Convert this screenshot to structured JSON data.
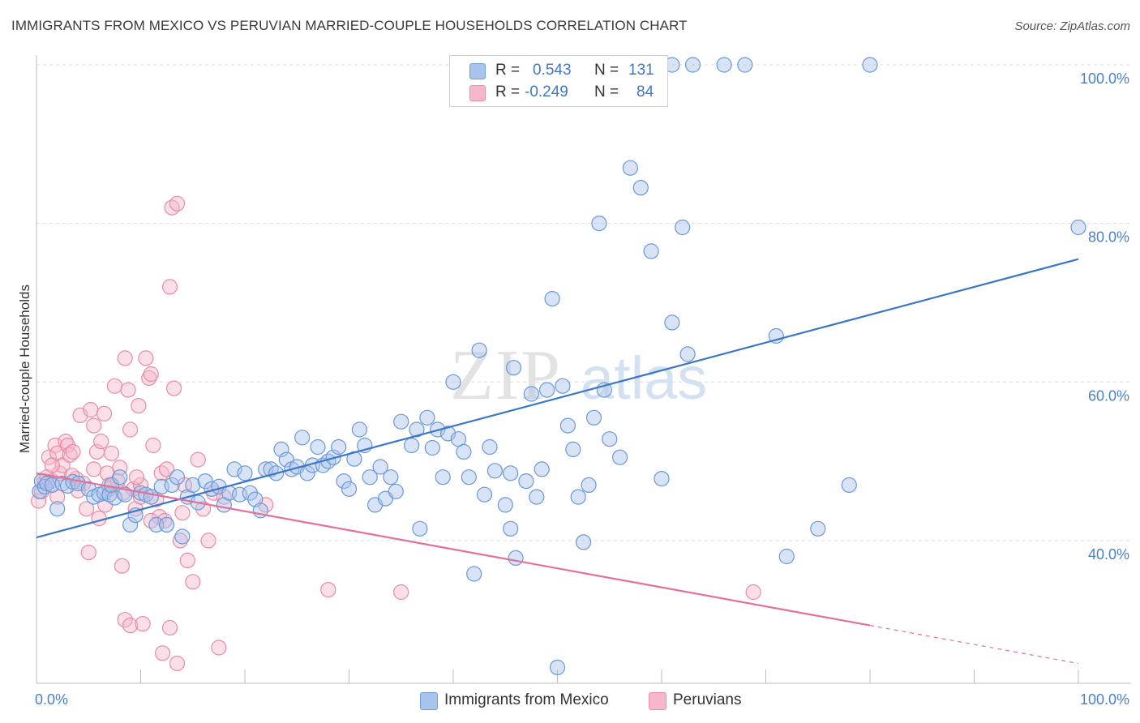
{
  "title": "IMMIGRANTS FROM MEXICO VS PERUVIAN MARRIED-COUPLE HOUSEHOLDS CORRELATION CHART",
  "source": "Source: ZipAtlas.com",
  "watermark": {
    "zip": "ZIP",
    "atlas": "atlas"
  },
  "legend": {
    "rows": [
      {
        "r_label": "R =",
        "r_value": "0.543",
        "n_label": "N =",
        "n_value": "131",
        "color": "#a9c4ec",
        "stroke": "#6f9fdc"
      },
      {
        "r_label": "R =",
        "r_value": "-0.249",
        "n_label": "N =",
        "n_value": "84",
        "color": "#f5b7c9",
        "stroke": "#ec8fab"
      }
    ]
  },
  "bottom_legend": [
    {
      "label": "Immigrants from Mexico",
      "color": "#a9c4ec",
      "stroke": "#6f9fdc"
    },
    {
      "label": "Peruvians",
      "color": "#f5b7c9",
      "stroke": "#ec8fab"
    }
  ],
  "chart_data": {
    "type": "scatter",
    "ylabel": "Married-couple Households",
    "xlim": [
      0,
      100
    ],
    "ylim": [
      22,
      100
    ],
    "x_tick_labels": [
      "0.0%",
      "100.0%"
    ],
    "y_ticks": [
      {
        "value": 40,
        "label": "40.0%"
      },
      {
        "value": 60,
        "label": "60.0%"
      },
      {
        "value": 80,
        "label": "80.0%"
      },
      {
        "value": 100,
        "label": "100.0%"
      }
    ],
    "grid": true,
    "colors": {
      "blue": "#3b76c9",
      "pink": "#e4709a",
      "tick_text": "#4a7fcd"
    },
    "series": [
      {
        "name": "Immigrants from Mexico",
        "color": "#3b76c9",
        "trend": {
          "x": [
            0,
            100
          ],
          "y": [
            40.4,
            75.5
          ]
        },
        "points": [
          [
            0.3,
            46.2
          ],
          [
            0.5,
            47.5
          ],
          [
            0.8,
            46.8
          ],
          [
            1,
            47.2
          ],
          [
            1.5,
            47
          ],
          [
            2,
            44
          ],
          [
            2.5,
            47.2
          ],
          [
            3,
            46.9
          ],
          [
            3.5,
            47.4
          ],
          [
            4,
            47.2
          ],
          [
            5,
            46.5
          ],
          [
            5.5,
            45.5
          ],
          [
            6,
            45.8
          ],
          [
            6.5,
            46
          ],
          [
            7,
            45.8
          ],
          [
            7.5,
            45.4
          ],
          [
            7.2,
            47
          ],
          [
            8,
            48
          ],
          [
            8.5,
            45.8
          ],
          [
            9,
            42
          ],
          [
            9.5,
            43.2
          ],
          [
            10,
            46
          ],
          [
            10.5,
            45.8
          ],
          [
            11,
            45.5
          ],
          [
            11.5,
            42
          ],
          [
            12,
            46.8
          ],
          [
            12.5,
            42
          ],
          [
            13,
            47
          ],
          [
            13.5,
            48
          ],
          [
            14,
            40.5
          ],
          [
            14.5,
            45.5
          ],
          [
            15,
            47
          ],
          [
            15.5,
            44.8
          ],
          [
            16.2,
            47.5
          ],
          [
            16.8,
            46.5
          ],
          [
            17.5,
            46.8
          ],
          [
            18,
            44.5
          ],
          [
            18.5,
            46
          ],
          [
            19,
            49
          ],
          [
            19.5,
            45.8
          ],
          [
            20,
            48.5
          ],
          [
            20.5,
            46
          ],
          [
            21,
            45.2
          ],
          [
            21.5,
            43.8
          ],
          [
            22,
            49
          ],
          [
            22.5,
            49
          ],
          [
            23,
            48.5
          ],
          [
            23.5,
            51.5
          ],
          [
            24,
            50.2
          ],
          [
            24.5,
            49
          ],
          [
            25,
            49.3
          ],
          [
            25.5,
            53
          ],
          [
            26,
            48.5
          ],
          [
            26.5,
            49.5
          ],
          [
            27,
            51.8
          ],
          [
            27.5,
            49.5
          ],
          [
            28,
            50
          ],
          [
            28.5,
            50.5
          ],
          [
            29,
            51.8
          ],
          [
            29.5,
            47.5
          ],
          [
            30,
            46.5
          ],
          [
            30.5,
            50.3
          ],
          [
            31,
            54
          ],
          [
            31.5,
            52
          ],
          [
            32,
            48
          ],
          [
            32.5,
            44.5
          ],
          [
            33,
            49.3
          ],
          [
            33.5,
            45.3
          ],
          [
            34,
            48
          ],
          [
            34.5,
            46.2
          ],
          [
            35,
            55
          ],
          [
            36,
            52
          ],
          [
            36.5,
            54
          ],
          [
            36.8,
            41.5
          ],
          [
            37.5,
            55.5
          ],
          [
            38,
            51.7
          ],
          [
            38.5,
            54
          ],
          [
            39,
            48
          ],
          [
            39.5,
            53.5
          ],
          [
            40,
            60
          ],
          [
            40.5,
            52.8
          ],
          [
            41,
            51.2
          ],
          [
            41.5,
            48
          ],
          [
            42,
            35.8
          ],
          [
            42.5,
            64
          ],
          [
            43,
            45.8
          ],
          [
            43.5,
            51.8
          ],
          [
            44,
            48.8
          ],
          [
            45,
            44.5
          ],
          [
            45.5,
            41.5
          ],
          [
            45.5,
            48.5
          ],
          [
            45.8,
            61.8
          ],
          [
            46,
            37.8
          ],
          [
            47,
            47.5
          ],
          [
            47.5,
            58.5
          ],
          [
            48,
            45.5
          ],
          [
            48.5,
            49
          ],
          [
            49,
            59
          ],
          [
            49.5,
            70.5
          ],
          [
            50,
            24
          ],
          [
            50.5,
            59.5
          ],
          [
            51,
            54.5
          ],
          [
            51.5,
            51.5
          ],
          [
            52,
            45.5
          ],
          [
            52.5,
            39.8
          ],
          [
            53,
            47
          ],
          [
            53.5,
            55.5
          ],
          [
            54,
            80
          ],
          [
            54.5,
            59
          ],
          [
            55,
            52.8
          ],
          [
            56,
            50.5
          ],
          [
            57,
            87
          ],
          [
            58,
            84.5
          ],
          [
            59,
            76.5
          ],
          [
            60,
            47.8
          ],
          [
            61,
            67.5
          ],
          [
            62,
            79.5
          ],
          [
            62.5,
            63.5
          ],
          [
            63,
            100
          ],
          [
            66,
            100
          ],
          [
            68,
            100
          ],
          [
            71,
            65.8
          ],
          [
            72,
            38
          ],
          [
            75,
            41.5
          ],
          [
            78,
            47
          ],
          [
            80,
            100
          ],
          [
            100,
            79.5
          ],
          [
            61,
            100
          ],
          [
            55.8,
            100
          ],
          [
            55.2,
            100
          ]
        ]
      },
      {
        "name": "Peruvians",
        "color": "#e4709a",
        "trend": {
          "x": [
            0,
            80
          ],
          "y": [
            48.5,
            29.3
          ]
        },
        "trend_dashed": {
          "x": [
            80,
            100
          ],
          "y": [
            29.3,
            24.5
          ]
        },
        "points": [
          [
            0.2,
            45
          ],
          [
            0.5,
            46.2
          ],
          [
            0.8,
            47.5
          ],
          [
            1,
            48
          ],
          [
            1.2,
            50.5
          ],
          [
            1.5,
            47.5
          ],
          [
            1.8,
            52
          ],
          [
            2,
            51
          ],
          [
            2.2,
            48.5
          ],
          [
            2.5,
            49.5
          ],
          [
            2.8,
            52.5
          ],
          [
            3,
            52
          ],
          [
            3.2,
            50.8
          ],
          [
            3.5,
            51.2
          ],
          [
            3.8,
            47.8
          ],
          [
            4,
            46.3
          ],
          [
            4.2,
            55.8
          ],
          [
            4.5,
            47.2
          ],
          [
            4.8,
            44
          ],
          [
            5,
            38.5
          ],
          [
            5.2,
            56.5
          ],
          [
            5.5,
            54.5
          ],
          [
            5.8,
            51.2
          ],
          [
            6,
            42.8
          ],
          [
            6.2,
            52.5
          ],
          [
            6.5,
            56
          ],
          [
            6.8,
            48.5
          ],
          [
            7,
            46.5
          ],
          [
            7.2,
            51
          ],
          [
            7.5,
            59.5
          ],
          [
            7.8,
            47.5
          ],
          [
            8,
            49.2
          ],
          [
            8.2,
            36.8
          ],
          [
            8.5,
            63
          ],
          [
            8.8,
            59
          ],
          [
            9,
            54
          ],
          [
            9.3,
            46.5
          ],
          [
            9.5,
            44
          ],
          [
            9.8,
            57
          ],
          [
            10,
            45.5
          ],
          [
            10.5,
            63
          ],
          [
            10.8,
            60.5
          ],
          [
            11,
            61
          ],
          [
            11.2,
            52
          ],
          [
            11.5,
            45.2
          ],
          [
            11.8,
            43
          ],
          [
            12,
            48.5
          ],
          [
            12.3,
            42.5
          ],
          [
            12.5,
            49
          ],
          [
            12.8,
            72
          ],
          [
            13,
            82
          ],
          [
            13.2,
            59.2
          ],
          [
            13.5,
            82.5
          ],
          [
            13.8,
            40
          ],
          [
            14,
            43.5
          ],
          [
            14.2,
            47
          ],
          [
            14.5,
            37.5
          ],
          [
            15,
            34.8
          ],
          [
            15.5,
            50.2
          ],
          [
            16,
            44
          ],
          [
            16.5,
            40
          ],
          [
            17,
            46
          ],
          [
            17.5,
            26.5
          ],
          [
            18,
            45.5
          ],
          [
            22,
            44.5
          ],
          [
            28,
            33.8
          ],
          [
            35,
            33.5
          ],
          [
            8.5,
            30
          ],
          [
            9,
            29.3
          ],
          [
            10.2,
            29.5
          ],
          [
            12.8,
            29
          ],
          [
            12.1,
            25.8
          ],
          [
            13.5,
            24.5
          ],
          [
            7,
            47
          ],
          [
            10,
            47
          ],
          [
            3.4,
            48.2
          ],
          [
            5.5,
            49
          ],
          [
            2,
            45.5
          ],
          [
            9.6,
            48
          ],
          [
            8.3,
            46
          ],
          [
            6.6,
            44.5
          ],
          [
            11,
            42.5
          ],
          [
            1.5,
            49.5
          ],
          [
            68.8,
            33.5
          ]
        ]
      }
    ]
  }
}
